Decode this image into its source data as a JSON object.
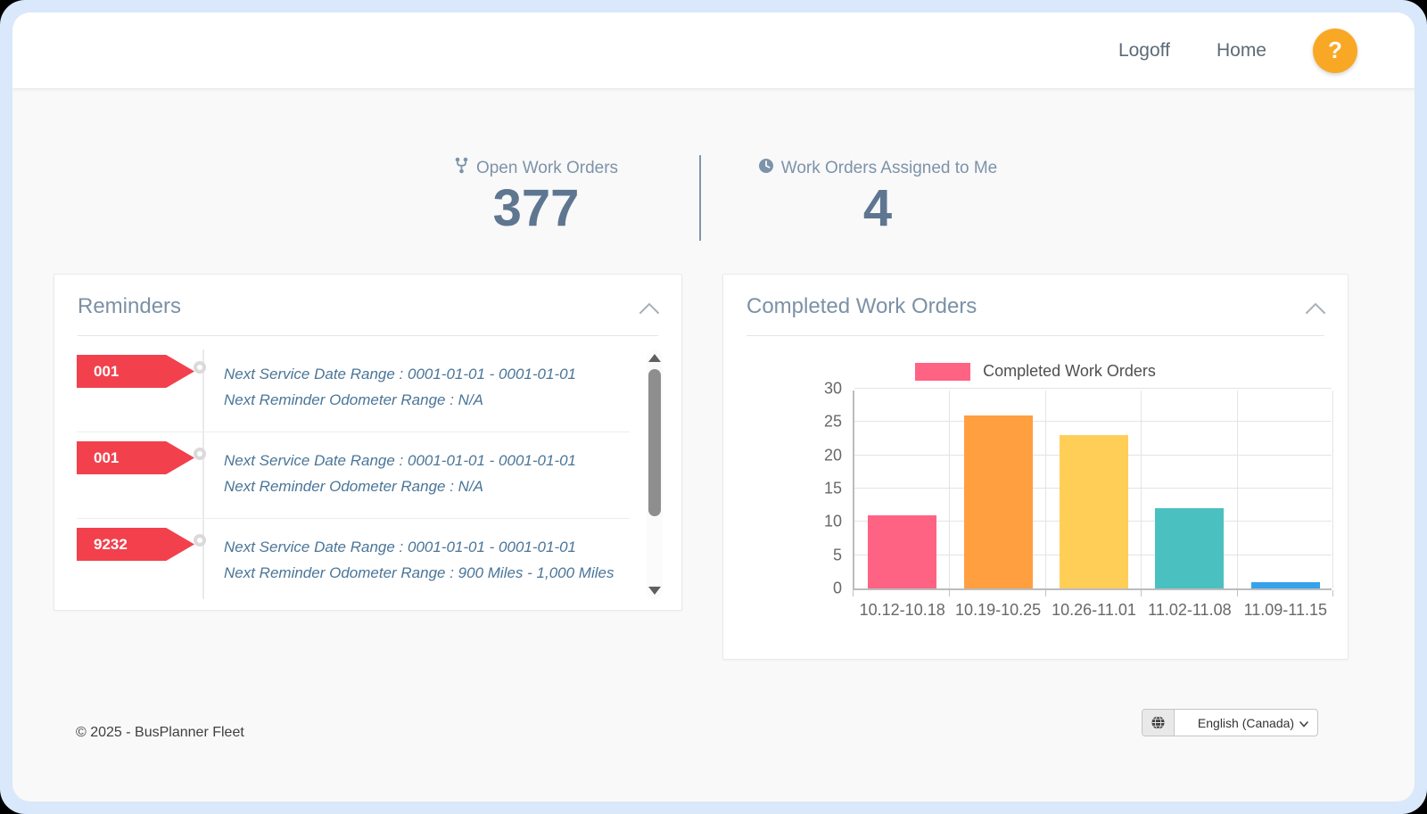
{
  "header": {
    "logoff": "Logoff",
    "home": "Home",
    "help": "?"
  },
  "stats": {
    "open_work_orders": {
      "icon": "fork-icon",
      "label": "Open Work Orders",
      "value": "377"
    },
    "assigned_to_me": {
      "icon": "clock-icon",
      "label": "Work Orders Assigned to Me",
      "value": "4"
    }
  },
  "reminders": {
    "title": "Reminders",
    "items": [
      {
        "tag": "001",
        "line1": "Next Service Date Range : 0001-01-01 - 0001-01-01",
        "line2": "Next Reminder Odometer Range : N/A"
      },
      {
        "tag": "001",
        "line1": "Next Service Date Range : 0001-01-01 - 0001-01-01",
        "line2": "Next Reminder Odometer Range : N/A"
      },
      {
        "tag": "9232",
        "line1": "Next Service Date Range : 0001-01-01 - 0001-01-01",
        "line2": "Next Reminder Odometer Range : 900 Miles - 1,000 Miles"
      }
    ]
  },
  "completed_panel": {
    "title": "Completed Work Orders"
  },
  "chart_data": {
    "type": "bar",
    "title": "Completed Work Orders",
    "legend": {
      "label": "Completed Work Orders",
      "color": "#FF6384",
      "position": "top"
    },
    "categories": [
      "10.12-10.18",
      "10.19-10.25",
      "10.26-11.01",
      "11.02-11.08",
      "11.09-11.15"
    ],
    "values": [
      11,
      26,
      23,
      12,
      1
    ],
    "bar_colors": [
      "#FF6384",
      "#FF9F40",
      "#FFCE56",
      "#4BC0C0",
      "#36A2EB"
    ],
    "ylim": [
      0,
      30
    ],
    "yticks": [
      0,
      5,
      10,
      15,
      20,
      25,
      30
    ],
    "grid": true,
    "xlabel": "",
    "ylabel": ""
  },
  "footer": {
    "copyright": "© 2025 - BusPlanner Fleet",
    "language": "English (Canada)"
  },
  "colors": {
    "frame_blue": "#d9e8fa",
    "content_bg": "#f9f9f9",
    "accent_red": "#f2414d",
    "help_orange": "#f9a826",
    "title_blue": "#7b91a6",
    "stat_blue": "#5e7690",
    "reminder_text_blue": "#4a7598"
  }
}
